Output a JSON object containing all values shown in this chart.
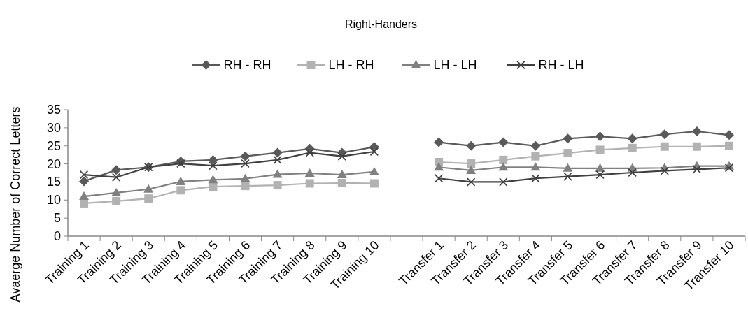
{
  "chart_data": {
    "type": "line",
    "title": "Right-Handers",
    "ylabel": "Avaerge Number of Correct Letters",
    "categories": [
      "Training 1",
      "Training 2",
      "Training 3",
      "Training 4",
      "Training 5",
      "Training 6",
      "Training 7",
      "Training 8",
      "Training 9",
      "Training 10",
      null,
      "Transfer 1",
      "Transfer 2",
      "Transfer 3",
      "Transfer 4",
      "Transfer 5",
      "Transfer 6",
      "Transfer 7",
      "Transfer 8",
      "Transfer 9",
      "Transfer 10"
    ],
    "ylim": [
      0,
      35
    ],
    "yticks": [
      0,
      5,
      10,
      15,
      20,
      25,
      30,
      35
    ],
    "grid": false,
    "legend": "top",
    "series": [
      {
        "name": "RH - RH",
        "color": "#595959",
        "marker": "diamond",
        "values": [
          15.2,
          18.3,
          19.1,
          20.7,
          21.1,
          22.1,
          23.1,
          24.2,
          23.1,
          24.7,
          null,
          26,
          25,
          26,
          25,
          27,
          27.6,
          27,
          28.2,
          29,
          28
        ]
      },
      {
        "name": "LH - RH",
        "color": "#b2b2b2",
        "marker": "square",
        "values": [
          9.1,
          9.7,
          10.4,
          12.7,
          13.7,
          13.9,
          14.1,
          14.6,
          14.7,
          14.6,
          null,
          20.5,
          20.1,
          21.1,
          22.1,
          23,
          23.9,
          24.4,
          24.8,
          24.8,
          25
        ]
      },
      {
        "name": "LH - LH",
        "color": "#808080",
        "marker": "triangle",
        "values": [
          11,
          12,
          13,
          15.1,
          15.6,
          15.9,
          17.1,
          17.4,
          17,
          17.8,
          null,
          19.1,
          18.2,
          19.1,
          19.1,
          18.8,
          18.8,
          18.8,
          18.9,
          19.4,
          19.4
        ]
      },
      {
        "name": "RH - LH",
        "color": "#404040",
        "marker": "cross",
        "values": [
          17,
          16.3,
          19.1,
          20.1,
          19.5,
          20.1,
          21.1,
          23.1,
          22.1,
          23.4,
          null,
          16,
          15,
          15,
          16,
          16.5,
          17,
          17.6,
          18.1,
          18.5,
          18.9
        ]
      }
    ]
  }
}
